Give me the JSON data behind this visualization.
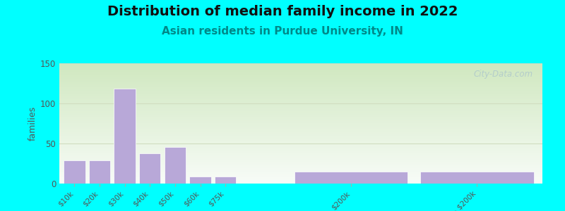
{
  "title": "Distribution of median family income in 2022",
  "subtitle": "Asian residents in Purdue University, IN",
  "ylabel": "families",
  "background_color": "#00FFFF",
  "bar_color": "#b8a8d8",
  "bar_edgecolor": "#ffffff",
  "categories": [
    "$10k",
    "$20k",
    "$30k",
    "$40k",
    "$50k",
    "$60k",
    "$75k",
    "$200k",
    "> $200k"
  ],
  "values": [
    29,
    29,
    118,
    38,
    46,
    9,
    9,
    15,
    15
  ],
  "positions": [
    0,
    1,
    2,
    3,
    4,
    5,
    6,
    11,
    16
  ],
  "bar_widths": [
    0.85,
    0.85,
    0.85,
    0.85,
    0.85,
    0.85,
    0.85,
    4.5,
    4.5
  ],
  "ylim": [
    0,
    150
  ],
  "yticks": [
    0,
    50,
    100,
    150
  ],
  "watermark": "City-Data.com",
  "title_fontsize": 14,
  "subtitle_fontsize": 11,
  "subtitle_color": "#008888",
  "title_color": "#111111",
  "tick_label_color": "#555555",
  "ylabel_color": "#555555",
  "grid_color": "#d0ddc0",
  "plot_xlim": [
    -0.6,
    18.6
  ],
  "gradient_top": "#d0e8c0",
  "gradient_bottom": "#f8fcf8"
}
